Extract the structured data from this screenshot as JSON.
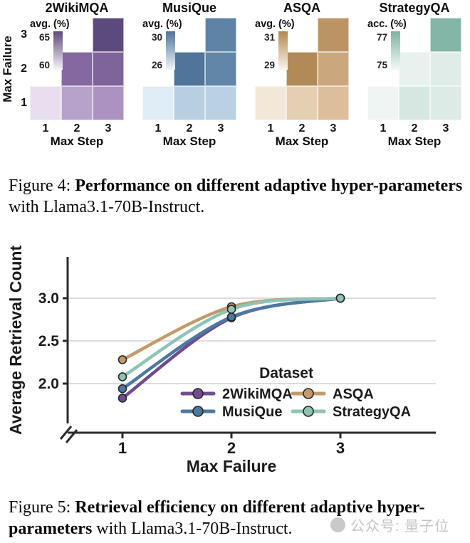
{
  "caption4": {
    "prefix": "Figure 4: ",
    "bold": "Performance on different adaptive hyper-parameters",
    "rest": " with Llama3.1-70B-Instruct."
  },
  "caption5": {
    "prefix": "Figure 5: ",
    "bold": "Retrieval efficiency on different adaptive hyper-parameters",
    "rest": " with Llama3.1-70B-Instruct."
  },
  "watermark": {
    "text": "公众号: 量子位"
  },
  "chart_data": [
    {
      "type": "heatmap",
      "figure": "Figure 4",
      "xlabel": "Max Step",
      "ylabel": "Max Failure",
      "x_ticks": [
        "1",
        "2",
        "3"
      ],
      "y_ticks": [
        "3",
        "2",
        "1"
      ],
      "panels": [
        {
          "title": "2WikiMQA",
          "legend_label": "avg. (%)",
          "legend_top": "65",
          "legend_bottom": "60",
          "colorbar_high": "#5d4a7c",
          "colorbar_low": "#f7f3fa",
          "cells": [
            {
              "failure": 3,
              "step": 3,
              "color": "#5d4a7c"
            },
            {
              "failure": 2,
              "step": 2,
              "color": "#84689f"
            },
            {
              "failure": 2,
              "step": 3,
              "color": "#7f639b"
            },
            {
              "failure": 1,
              "step": 1,
              "color": "#e8def0"
            },
            {
              "failure": 1,
              "step": 2,
              "color": "#b7a2cb"
            },
            {
              "failure": 1,
              "step": 3,
              "color": "#ab92c1"
            }
          ]
        },
        {
          "title": "MusiQue",
          "legend_label": "avg. (%)",
          "legend_top": "30",
          "legend_bottom": "26",
          "colorbar_high": "#4f7399",
          "colorbar_low": "#eff5fa",
          "cells": [
            {
              "failure": 3,
              "step": 3,
              "color": "#5e83a6"
            },
            {
              "failure": 2,
              "step": 2,
              "color": "#50749a"
            },
            {
              "failure": 2,
              "step": 3,
              "color": "#6286a8"
            },
            {
              "failure": 1,
              "step": 1,
              "color": "#e0edf6"
            },
            {
              "failure": 1,
              "step": 2,
              "color": "#b7cfe1"
            },
            {
              "failure": 1,
              "step": 3,
              "color": "#b9d1e2"
            }
          ]
        },
        {
          "title": "ASQA",
          "legend_label": "avg. (%)",
          "legend_top": "31",
          "legend_bottom": "29",
          "colorbar_high": "#b1894f",
          "colorbar_low": "#fbf4ec",
          "cells": [
            {
              "failure": 3,
              "step": 3,
              "color": "#ba9465"
            },
            {
              "failure": 2,
              "step": 2,
              "color": "#b28a58"
            },
            {
              "failure": 2,
              "step": 3,
              "color": "#caa77d"
            },
            {
              "failure": 1,
              "step": 1,
              "color": "#f3e7d7"
            },
            {
              "failure": 1,
              "step": 2,
              "color": "#e5cfb2"
            },
            {
              "failure": 1,
              "step": 3,
              "color": "#dcbe9b"
            }
          ]
        },
        {
          "title": "StrategyQA",
          "legend_label": "acc. (%)",
          "legend_top": "77",
          "legend_bottom": "75",
          "colorbar_high": "#7fb3a4",
          "colorbar_low": "#f4f9f7",
          "cells": [
            {
              "failure": 3,
              "step": 3,
              "color": "#83b6a7"
            },
            {
              "failure": 2,
              "step": 2,
              "color": "#e9f1ee"
            },
            {
              "failure": 2,
              "step": 3,
              "color": "#dfece8"
            },
            {
              "failure": 1,
              "step": 1,
              "color": "#eff5f3"
            },
            {
              "failure": 1,
              "step": 2,
              "color": "#d6e7e1"
            },
            {
              "failure": 1,
              "step": 3,
              "color": "#dcebe6"
            }
          ]
        }
      ]
    },
    {
      "type": "line",
      "figure": "Figure 5",
      "xlabel": "Max Failure",
      "ylabel": "Average Retrieval Count",
      "x": [
        1,
        2,
        3
      ],
      "x_tick_labels": [
        "1",
        "2",
        "3"
      ],
      "y_tick_labels": [
        "2.0",
        "2.5",
        "3.0"
      ],
      "y_tick_values": [
        2.0,
        2.5,
        3.0
      ],
      "axis_break": true,
      "grid": "horizontal",
      "legend_title": "Dataset",
      "legend_layout": [
        [
          "2WikiMQA",
          "ASQA"
        ],
        [
          "MusiQue",
          "StrategyQA"
        ]
      ],
      "series": [
        {
          "name": "2WikiMQA",
          "color": "#6f4b8f",
          "values": [
            1.83,
            2.77,
            3.0
          ]
        },
        {
          "name": "MusiQue",
          "color": "#4d78a0",
          "values": [
            1.94,
            2.78,
            3.0
          ]
        },
        {
          "name": "ASQA",
          "color": "#c19b69",
          "values": [
            2.28,
            2.9,
            3.0
          ]
        },
        {
          "name": "StrategyQA",
          "color": "#8ec4b6",
          "values": [
            2.08,
            2.87,
            3.0
          ]
        }
      ]
    }
  ]
}
